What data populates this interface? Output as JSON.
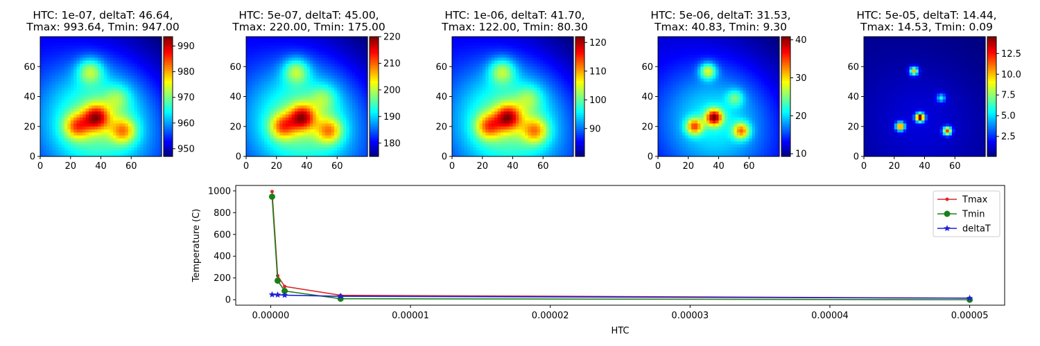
{
  "chart_data": [
    {
      "type": "heatmap",
      "title_line1": "HTC: 1e-07, deltaT: 46.64,",
      "title_line2": "Tmax: 993.64, Tmin: 947.00",
      "htc": 1e-07,
      "deltaT": 46.64,
      "Tmax": 993.64,
      "Tmin": 947.0,
      "xlim": [
        0,
        80
      ],
      "ylim": [
        0,
        80
      ],
      "xticks": [
        0,
        20,
        40,
        60
      ],
      "yticks": [
        0,
        20,
        40,
        60
      ],
      "colorbar_ticks": [
        950,
        960,
        970,
        980,
        990
      ],
      "colormap": "jet",
      "hotspots": [
        [
          37,
          26
        ],
        [
          24,
          20
        ],
        [
          55,
          17
        ],
        [
          33,
          57
        ],
        [
          51,
          39
        ]
      ]
    },
    {
      "type": "heatmap",
      "title_line1": "HTC: 5e-07, deltaT: 45.00,",
      "title_line2": "Tmax: 220.00, Tmin: 175.00",
      "htc": 5e-07,
      "deltaT": 45.0,
      "Tmax": 220.0,
      "Tmin": 175.0,
      "xlim": [
        0,
        80
      ],
      "ylim": [
        0,
        80
      ],
      "xticks": [
        0,
        20,
        40,
        60
      ],
      "yticks": [
        0,
        20,
        40,
        60
      ],
      "colorbar_ticks": [
        180,
        190,
        200,
        210,
        220
      ],
      "colormap": "jet",
      "hotspots": [
        [
          37,
          26
        ],
        [
          24,
          20
        ],
        [
          55,
          17
        ],
        [
          33,
          57
        ],
        [
          51,
          39
        ]
      ]
    },
    {
      "type": "heatmap",
      "title_line1": "HTC: 1e-06, deltaT: 41.70,",
      "title_line2": "Tmax: 122.00, Tmin: 80.30",
      "htc": 1e-06,
      "deltaT": 41.7,
      "Tmax": 122.0,
      "Tmin": 80.3,
      "xlim": [
        0,
        80
      ],
      "ylim": [
        0,
        80
      ],
      "xticks": [
        0,
        20,
        40,
        60
      ],
      "yticks": [
        0,
        20,
        40,
        60
      ],
      "colorbar_ticks": [
        90,
        100,
        110,
        120
      ],
      "colormap": "jet",
      "hotspots": [
        [
          37,
          26
        ],
        [
          24,
          20
        ],
        [
          55,
          17
        ],
        [
          33,
          57
        ],
        [
          51,
          39
        ]
      ]
    },
    {
      "type": "heatmap",
      "title_line1": "HTC: 5e-06, deltaT: 31.53,",
      "title_line2": "Tmax: 40.83, Tmin: 9.30",
      "htc": 5e-06,
      "deltaT": 31.53,
      "Tmax": 40.83,
      "Tmin": 9.3,
      "xlim": [
        0,
        80
      ],
      "ylim": [
        0,
        80
      ],
      "xticks": [
        0,
        20,
        40,
        60
      ],
      "yticks": [
        0,
        20,
        40,
        60
      ],
      "colorbar_ticks": [
        10,
        20,
        30,
        40
      ],
      "colormap": "jet",
      "hotspots": [
        [
          37,
          26
        ],
        [
          24,
          20
        ],
        [
          55,
          17
        ],
        [
          33,
          57
        ],
        [
          51,
          39
        ]
      ]
    },
    {
      "type": "heatmap",
      "title_line1": "HTC: 5e-05, deltaT: 14.44,",
      "title_line2": "Tmax: 14.53, Tmin: 0.09",
      "htc": 5e-05,
      "deltaT": 14.44,
      "Tmax": 14.53,
      "Tmin": 0.09,
      "xlim": [
        0,
        80
      ],
      "ylim": [
        0,
        80
      ],
      "xticks": [
        0,
        20,
        40,
        60
      ],
      "yticks": [
        0,
        20,
        40,
        60
      ],
      "colorbar_ticks": [
        2.5,
        5.0,
        7.5,
        10.0,
        12.5
      ],
      "colorbar_tick_labels": [
        "2.5",
        "5.0",
        "7.5",
        "10.0",
        "12.5"
      ],
      "colormap": "jet",
      "hotspots": [
        [
          37,
          26
        ],
        [
          24,
          20
        ],
        [
          55,
          17
        ],
        [
          33,
          57
        ],
        [
          51,
          39
        ]
      ]
    },
    {
      "type": "line",
      "xlabel": "HTC",
      "ylabel": "Temperature (C)",
      "xlim": [
        -2.5e-06,
        5.25e-05
      ],
      "ylim": [
        -50,
        1050
      ],
      "xticks": [
        0,
        1e-05,
        2e-05,
        3e-05,
        4e-05,
        5e-05
      ],
      "xtick_labels": [
        "0.00000",
        "0.00001",
        "0.00002",
        "0.00003",
        "0.00004",
        "0.00005"
      ],
      "yticks": [
        0,
        200,
        400,
        600,
        800,
        1000
      ],
      "x": [
        1e-07,
        5e-07,
        1e-06,
        5e-06,
        5e-05
      ],
      "legend_position": "upper right",
      "series": [
        {
          "name": "Tmax",
          "color": "#d62728",
          "marker": "dot",
          "values": [
            993.64,
            220.0,
            122.0,
            40.83,
            14.53
          ]
        },
        {
          "name": "Tmin",
          "color": "#1a7f1a",
          "marker": "circle",
          "values": [
            947.0,
            175.0,
            80.3,
            9.3,
            0.09
          ]
        },
        {
          "name": "deltaT",
          "color": "#1f1fd6",
          "marker": "star",
          "values": [
            46.64,
            45.0,
            41.7,
            31.53,
            14.44
          ]
        }
      ]
    }
  ]
}
